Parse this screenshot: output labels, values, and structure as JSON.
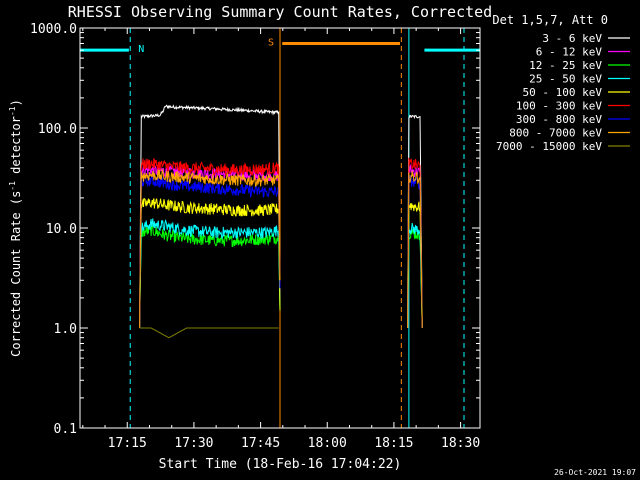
{
  "chart_data": {
    "type": "line",
    "title": "RHESSI Observing Summary Count Rates, Corrected",
    "xlabel": "Start Time (18-Feb-16 17:04:22)",
    "ylabel_main": "Corrected Count Rate (s",
    "ylabel_sup": "-1",
    "ylabel_mid": " detector",
    "ylabel_sup2": "-1",
    "ylabel_end": ")",
    "yscale": "log",
    "ylim": [
      0.1,
      1000
    ],
    "xlim_minutes": [
      0,
      90
    ],
    "x_ticks": [
      {
        "m": 10.633,
        "label": "17:15"
      },
      {
        "m": 25.633,
        "label": "17:30"
      },
      {
        "m": 40.633,
        "label": "17:45"
      },
      {
        "m": 55.633,
        "label": "18:00"
      },
      {
        "m": 70.633,
        "label": "18:15"
      },
      {
        "m": 85.633,
        "label": "18:30"
      }
    ],
    "y_ticks": [
      {
        "v": 0.1,
        "label": "0.1"
      },
      {
        "v": 1.0,
        "label": "1.0"
      },
      {
        "v": 10.0,
        "label": "10.0"
      },
      {
        "v": 100.0,
        "label": "100.0"
      },
      {
        "v": 1000.0,
        "label": "1000.0"
      }
    ],
    "legend": {
      "header": "Det 1,5,7, Att 0",
      "placement": "right"
    },
    "series": [
      {
        "name": "3 - 6 keV",
        "color": "#ffffff",
        "segments": [
          {
            "x": [
              13.4,
              13.8,
              16,
              18,
              18.8,
              19.2,
              21,
              24,
              27,
              30,
              33,
              36,
              39,
              42,
              44.7,
              45.0
            ],
            "y": [
              1.0,
              130,
              132,
              134,
              150,
              165,
              162,
              160,
              158,
              156,
              153,
              151,
              148,
              145,
              143,
              2
            ]
          },
          {
            "x": [
              73.7,
              74.0,
              76.5,
              77.0
            ],
            "y": [
              1.0,
              130,
              130,
              1.0
            ]
          }
        ]
      },
      {
        "name": "6 - 12 keV",
        "color": "#ff00ff",
        "segments": [
          {
            "x": [
              13.4,
              13.8,
              16,
              19,
              24,
              30,
              36,
              42,
              44.7,
              45.0
            ],
            "y": [
              1.0,
              38,
              38,
              37,
              36,
              35,
              34,
              34,
              33,
              2
            ]
          },
          {
            "x": [
              73.7,
              74.0,
              76.5,
              77.0
            ],
            "y": [
              1.0,
              38,
              36,
              1.0
            ]
          }
        ]
      },
      {
        "name": "12 - 25 keV",
        "color": "#00ff00",
        "segments": [
          {
            "x": [
              13.4,
              13.8,
              16,
              19,
              24,
              30,
              36,
              42,
              44.7,
              45.0
            ],
            "y": [
              1.0,
              9,
              9.5,
              8.5,
              7.8,
              7.5,
              7.5,
              7.8,
              8,
              1.5
            ]
          },
          {
            "x": [
              73.7,
              74.0,
              76.5,
              77.0
            ],
            "y": [
              1.0,
              9,
              8.5,
              1.0
            ]
          }
        ]
      },
      {
        "name": "25 - 50 keV",
        "color": "#00ffff",
        "segments": [
          {
            "x": [
              13.4,
              13.8,
              16,
              19,
              24,
              30,
              36,
              42,
              44.7,
              45.0
            ],
            "y": [
              1.0,
              10,
              11,
              10.5,
              9.5,
              9,
              9,
              9,
              9.5,
              1.5
            ]
          },
          {
            "x": [
              73.7,
              74.0,
              76.5,
              77.0
            ],
            "y": [
              1.0,
              10,
              9.5,
              1.0
            ]
          }
        ]
      },
      {
        "name": "50 - 100 keV",
        "color": "#ffff00",
        "segments": [
          {
            "x": [
              13.4,
              13.8,
              16,
              19,
              24,
              30,
              36,
              42,
              44.7,
              45.0
            ],
            "y": [
              1.0,
              17,
              18,
              17,
              16,
              15.5,
              15,
              15,
              15.5,
              1.5
            ]
          },
          {
            "x": [
              73.7,
              74.0,
              76.5,
              77.0
            ],
            "y": [
              1.0,
              17,
              16,
              1.0
            ]
          }
        ]
      },
      {
        "name": "100 - 300 keV",
        "color": "#ff0000",
        "segments": [
          {
            "x": [
              13.4,
              13.8,
              16,
              19,
              24,
              30,
              36,
              42,
              44.7,
              45.0
            ],
            "y": [
              1.0,
              43,
              44,
              42,
              40,
              39,
              38,
              39,
              40,
              3
            ]
          },
          {
            "x": [
              73.7,
              74.0,
              76.5,
              77.0
            ],
            "y": [
              1.0,
              44,
              42,
              1.0
            ]
          }
        ]
      },
      {
        "name": "300 - 800 keV",
        "color": "#0000ff",
        "segments": [
          {
            "x": [
              13.4,
              13.8,
              16,
              19,
              24,
              30,
              36,
              42,
              44.7,
              45.0
            ],
            "y": [
              1.0,
              29,
              30,
              28,
              26,
              25,
              24,
              23,
              23,
              2.5
            ]
          },
          {
            "x": [
              73.7,
              74.0,
              76.5,
              77.0
            ],
            "y": [
              1.0,
              30,
              28,
              1.0
            ]
          }
        ]
      },
      {
        "name": "800 - 7000 keV",
        "color": "#ffa500",
        "segments": [
          {
            "x": [
              13.4,
              13.8,
              16,
              19,
              24,
              30,
              36,
              42,
              44.7,
              45.0
            ],
            "y": [
              1.0,
              33,
              34,
              33,
              32,
              31,
              30,
              30,
              30,
              3
            ]
          },
          {
            "x": [
              73.7,
              74.0,
              76.5,
              77.0
            ],
            "y": [
              1.0,
              33,
              32,
              1.0
            ]
          }
        ]
      },
      {
        "name": "7000 - 15000 keV",
        "color": "#808000",
        "segments": [
          {
            "x": [
              13.4,
              13.8,
              16,
              20,
              24,
              30,
              36,
              42,
              44.7
            ],
            "y": [
              1.0,
              1.0,
              1.0,
              0.8,
              1.0,
              1.0,
              1.0,
              1.0,
              1.0
            ]
          }
        ]
      }
    ],
    "flags": [
      {
        "label": "N",
        "color": "#00ffff",
        "bars": [
          [
            0,
            11
          ],
          [
            77.5,
            90
          ]
        ],
        "bar_level": 600,
        "solid_lines": [
          0,
          74.0
        ],
        "dashed_lines": [
          11.3,
          86.4
        ]
      },
      {
        "label": "S",
        "color": "#ff8c00",
        "bars": [
          [
            45.5,
            72.0
          ]
        ],
        "bar_level": 700,
        "solid_lines": [
          45.0
        ],
        "dashed_lines": [
          72.3
        ]
      }
    ]
  },
  "footer": {
    "timestamp": "26-Oct-2021 19:07"
  }
}
